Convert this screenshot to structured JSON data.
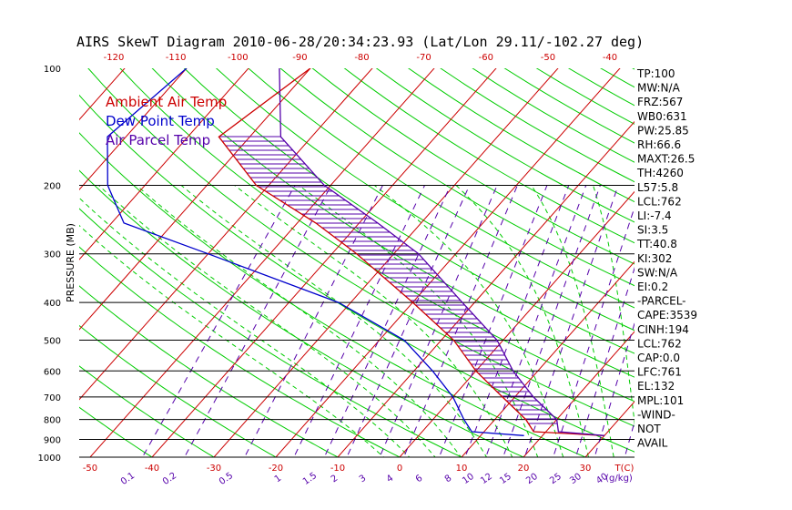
{
  "chart_data": {
    "type": "line",
    "title": "AIRS SkewT Diagram 2010-06-28/20:34:23.93 (Lat/Lon 29.11/-102.27 deg)",
    "ylabel": "PRESSURE (MB)",
    "y_scale": "log",
    "ylim": [
      1000,
      100
    ],
    "xlim_bottom_temperature": [
      -50,
      35
    ],
    "pressure_ticks": [
      100,
      200,
      300,
      400,
      500,
      600,
      700,
      800,
      900,
      1000
    ],
    "bottom_temperature_ticks": [
      -50,
      -40,
      -30,
      -20,
      -10,
      0,
      10,
      20,
      30
    ],
    "bottom_temperature_unit": "T(C)",
    "top_temperature_ticks": [
      -120,
      -110,
      -100,
      -90,
      -80,
      -70,
      -60,
      -50,
      -40
    ],
    "mixing_ratio_labels": [
      "0.1",
      "0.2",
      "0.5",
      "1",
      "1.5",
      "2",
      "3",
      "4",
      "6",
      "8",
      "10",
      "12",
      "15",
      "20",
      "25",
      "30",
      "40"
    ],
    "mixing_ratio_unit": "(g/kg)",
    "legend": [
      {
        "label": "Ambient Air Temp",
        "color": "#cc0000"
      },
      {
        "label": "Dew Point Temp",
        "color": "#0000cc"
      },
      {
        "label": "Air Parcel Temp",
        "color": "#5500aa"
      }
    ],
    "series": [
      {
        "name": "Ambient Air Temp",
        "color": "#cc0000",
        "points": [
          {
            "p": 100,
            "t": -70
          },
          {
            "p": 150,
            "t": -75
          },
          {
            "p": 200,
            "t": -62
          },
          {
            "p": 250,
            "t": -47
          },
          {
            "p": 300,
            "t": -36
          },
          {
            "p": 400,
            "t": -20
          },
          {
            "p": 500,
            "t": -8
          },
          {
            "p": 600,
            "t": 0
          },
          {
            "p": 700,
            "t": 8
          },
          {
            "p": 800,
            "t": 15
          },
          {
            "p": 860,
            "t": 18
          },
          {
            "p": 880,
            "t": 30
          }
        ]
      },
      {
        "name": "Dew Point Temp",
        "color": "#0000cc",
        "points": [
          {
            "p": 100,
            "t": -90
          },
          {
            "p": 150,
            "t": -93
          },
          {
            "p": 200,
            "t": -86
          },
          {
            "p": 250,
            "t": -78
          },
          {
            "p": 300,
            "t": -60
          },
          {
            "p": 400,
            "t": -32
          },
          {
            "p": 500,
            "t": -16
          },
          {
            "p": 600,
            "t": -7
          },
          {
            "p": 700,
            "t": 0
          },
          {
            "p": 800,
            "t": 5
          },
          {
            "p": 860,
            "t": 8
          },
          {
            "p": 880,
            "t": 17
          }
        ]
      },
      {
        "name": "Air Parcel Temp",
        "color": "#5500aa",
        "points": [
          {
            "p": 100,
            "t": -75
          },
          {
            "p": 150,
            "t": -65
          },
          {
            "p": 200,
            "t": -51
          },
          {
            "p": 250,
            "t": -37
          },
          {
            "p": 300,
            "t": -26
          },
          {
            "p": 400,
            "t": -12
          },
          {
            "p": 500,
            "t": -1
          },
          {
            "p": 600,
            "t": 6
          },
          {
            "p": 700,
            "t": 13
          },
          {
            "p": 800,
            "t": 20
          },
          {
            "p": 860,
            "t": 22
          },
          {
            "p": 880,
            "t": 30
          }
        ]
      }
    ],
    "indices": [
      "TP:100",
      "MW:N/A",
      "FRZ:567",
      "WB0:631",
      "PW:25.85",
      "RH:66.6",
      "MAXT:26.5",
      "TH:4260",
      "L57:5.8",
      "LCL:762",
      "LI:-7.4",
      "SI:3.5",
      "TT:40.8",
      "KI:302",
      "SW:N/A",
      "EI:0.2",
      "-PARCEL-",
      "CAPE:3539",
      "CINH:194",
      "LCL:762",
      "CAP:0.0",
      "LFC:761",
      "EL:132",
      "MPL:101",
      "-WIND-",
      "NOT",
      "AVAIL"
    ],
    "colors": {
      "dry_adiabat": "#00cc00",
      "moist_adiabat": "#00cc00",
      "isotherm": "#cc0000",
      "mixing_ratio": "#5500aa",
      "isobar": "#000000",
      "cape_hatch": "#5500aa"
    }
  }
}
